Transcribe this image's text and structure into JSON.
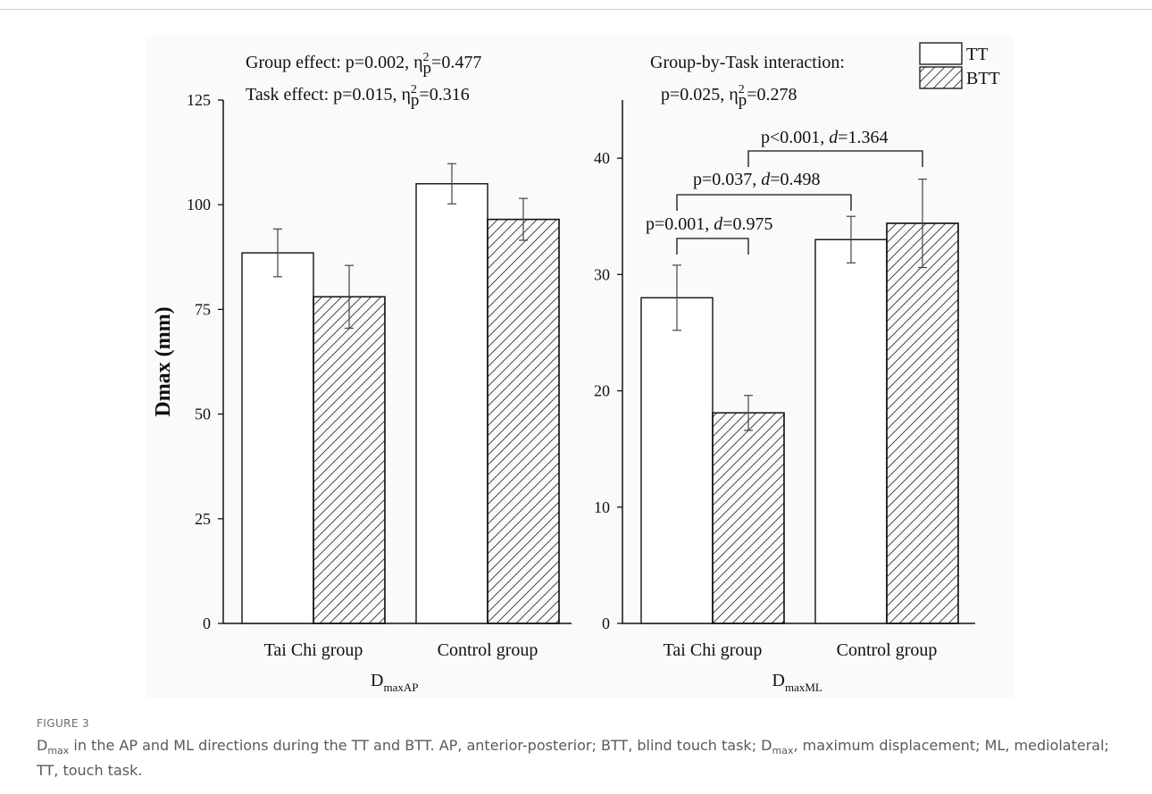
{
  "figure": {
    "label": "FIGURE 3",
    "caption_symbol": "D",
    "caption_symbol_sub": "max",
    "caption_rest": " in the AP and ML directions during the TT and BTT. AP, anterior-posterior; BTT, blind touch task; D",
    "caption_rest_sub": "max",
    "caption_tail": ", maximum displacement; ML, mediolateral; TT, touch task."
  },
  "chart_data": [
    {
      "type": "bar",
      "ylabel": "Dmax (mm)",
      "xlabel_main": "D",
      "xlabel_sub": "maxAP",
      "ylim": [
        0,
        125
      ],
      "yticks": [
        "0",
        "25",
        "50",
        "75",
        "100",
        "125"
      ],
      "categories": [
        "Tai Chi group",
        "Control group"
      ],
      "series": [
        {
          "name": "TT",
          "values": [
            88.5,
            105
          ],
          "errors": [
            5.7,
            4.8
          ]
        },
        {
          "name": "BTT",
          "values": [
            78,
            96.5
          ],
          "errors": [
            7.5,
            5.0
          ]
        }
      ],
      "annotations": [
        {
          "pre": "Group effect: p=0.002, η",
          "sup": "2",
          "sub": "p",
          "post": "=0.477"
        },
        {
          "pre": "Task effect: p=0.015, η",
          "sup": "2",
          "sub": "p",
          "post": "=0.316"
        }
      ]
    },
    {
      "type": "bar",
      "xlabel_main": "D",
      "xlabel_sub": "maxML",
      "ylim": [
        0,
        45
      ],
      "yticks": [
        "0",
        "10",
        "20",
        "30",
        "40"
      ],
      "categories": [
        "Tai Chi group",
        "Control group"
      ],
      "series": [
        {
          "name": "TT",
          "values": [
            28,
            33
          ],
          "errors": [
            2.8,
            2.0
          ]
        },
        {
          "name": "BTT",
          "values": [
            18.1,
            34.4
          ],
          "errors": [
            1.5,
            3.8
          ]
        }
      ],
      "annotations": [
        {
          "pre": "Group-by-Task interaction:",
          "sup": "",
          "sub": "",
          "post": ""
        },
        {
          "pre": "p=0.025, η",
          "sup": "2",
          "sub": "p",
          "post": "=0.278"
        }
      ],
      "comparisons": [
        {
          "from": [
            0,
            0
          ],
          "to": [
            0,
            1
          ],
          "p": "p=0.001, ",
          "d_label": "d",
          "d": "=0.975"
        },
        {
          "from": [
            0,
            0
          ],
          "to": [
            1,
            0
          ],
          "p": "p=0.037, ",
          "d_label": "d",
          "d": "=0.498"
        },
        {
          "from": [
            0,
            1
          ],
          "to": [
            1,
            1
          ],
          "p": "p<0.001, ",
          "d_label": "d",
          "d": "=1.364"
        }
      ]
    }
  ],
  "legend": [
    {
      "label": "TT",
      "pattern": "none"
    },
    {
      "label": "BTT",
      "pattern": "hatch"
    }
  ]
}
